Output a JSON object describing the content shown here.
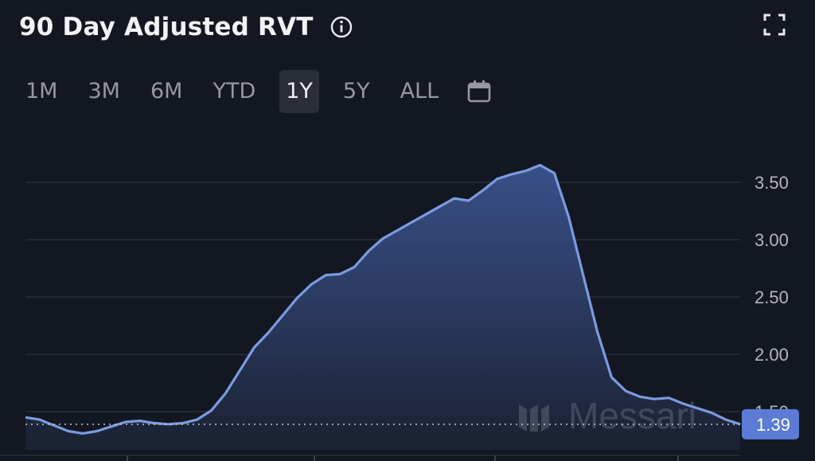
{
  "header": {
    "title": "90 Day Adjusted RVT"
  },
  "icons": {
    "info": "info-icon",
    "expand": "expand-icon",
    "calendar": "calendar-icon"
  },
  "ranges": [
    {
      "label": "1M",
      "active": false
    },
    {
      "label": "3M",
      "active": false
    },
    {
      "label": "6M",
      "active": false
    },
    {
      "label": "YTD",
      "active": false
    },
    {
      "label": "1Y",
      "active": true
    },
    {
      "label": "5Y",
      "active": false
    },
    {
      "label": "ALL",
      "active": false
    }
  ],
  "watermark": "Messari",
  "colors": {
    "background": "#131722",
    "line": "#7b9be0",
    "badge": "#5b7bd5"
  },
  "chart_data": {
    "type": "area",
    "title": "90 Day Adjusted RVT",
    "xlabel": "",
    "ylabel": "",
    "ylim": [
      1.2,
      3.75
    ],
    "yticks": [
      "3.50",
      "3.00",
      "2.50",
      "2.00",
      "1.50"
    ],
    "ytick_values": [
      3.5,
      3.0,
      2.5,
      2.0,
      1.5
    ],
    "grid": true,
    "last_value": "1.39",
    "x": [
      0,
      4,
      8,
      12,
      16,
      20,
      24,
      28,
      32,
      36,
      40,
      44,
      48,
      52,
      56,
      60,
      64,
      68,
      72,
      76,
      80,
      84,
      88,
      92,
      96,
      100
    ],
    "values": [
      1.45,
      1.43,
      1.38,
      1.33,
      1.31,
      1.33,
      1.37,
      1.41,
      1.42,
      1.4,
      1.39,
      1.4,
      1.43,
      1.51,
      1.66,
      1.86,
      2.06,
      2.19,
      2.34,
      2.49,
      2.61,
      2.69,
      2.7,
      2.76,
      2.9,
      3.01
    ]
  },
  "chart_data_extra": {
    "x": [
      104,
      108,
      112,
      116,
      120,
      124,
      128,
      132,
      136,
      140,
      144,
      148,
      152,
      156,
      160,
      164,
      168,
      172,
      176,
      180,
      184,
      188,
      192,
      196,
      200
    ],
    "values": [
      3.08,
      3.15,
      3.22,
      3.29,
      3.36,
      3.34,
      3.43,
      3.53,
      3.57,
      3.6,
      3.65,
      3.58,
      3.2,
      2.7,
      2.2,
      1.8,
      1.68,
      1.63,
      1.61,
      1.62,
      1.57,
      1.53,
      1.49,
      1.43,
      1.39
    ]
  }
}
